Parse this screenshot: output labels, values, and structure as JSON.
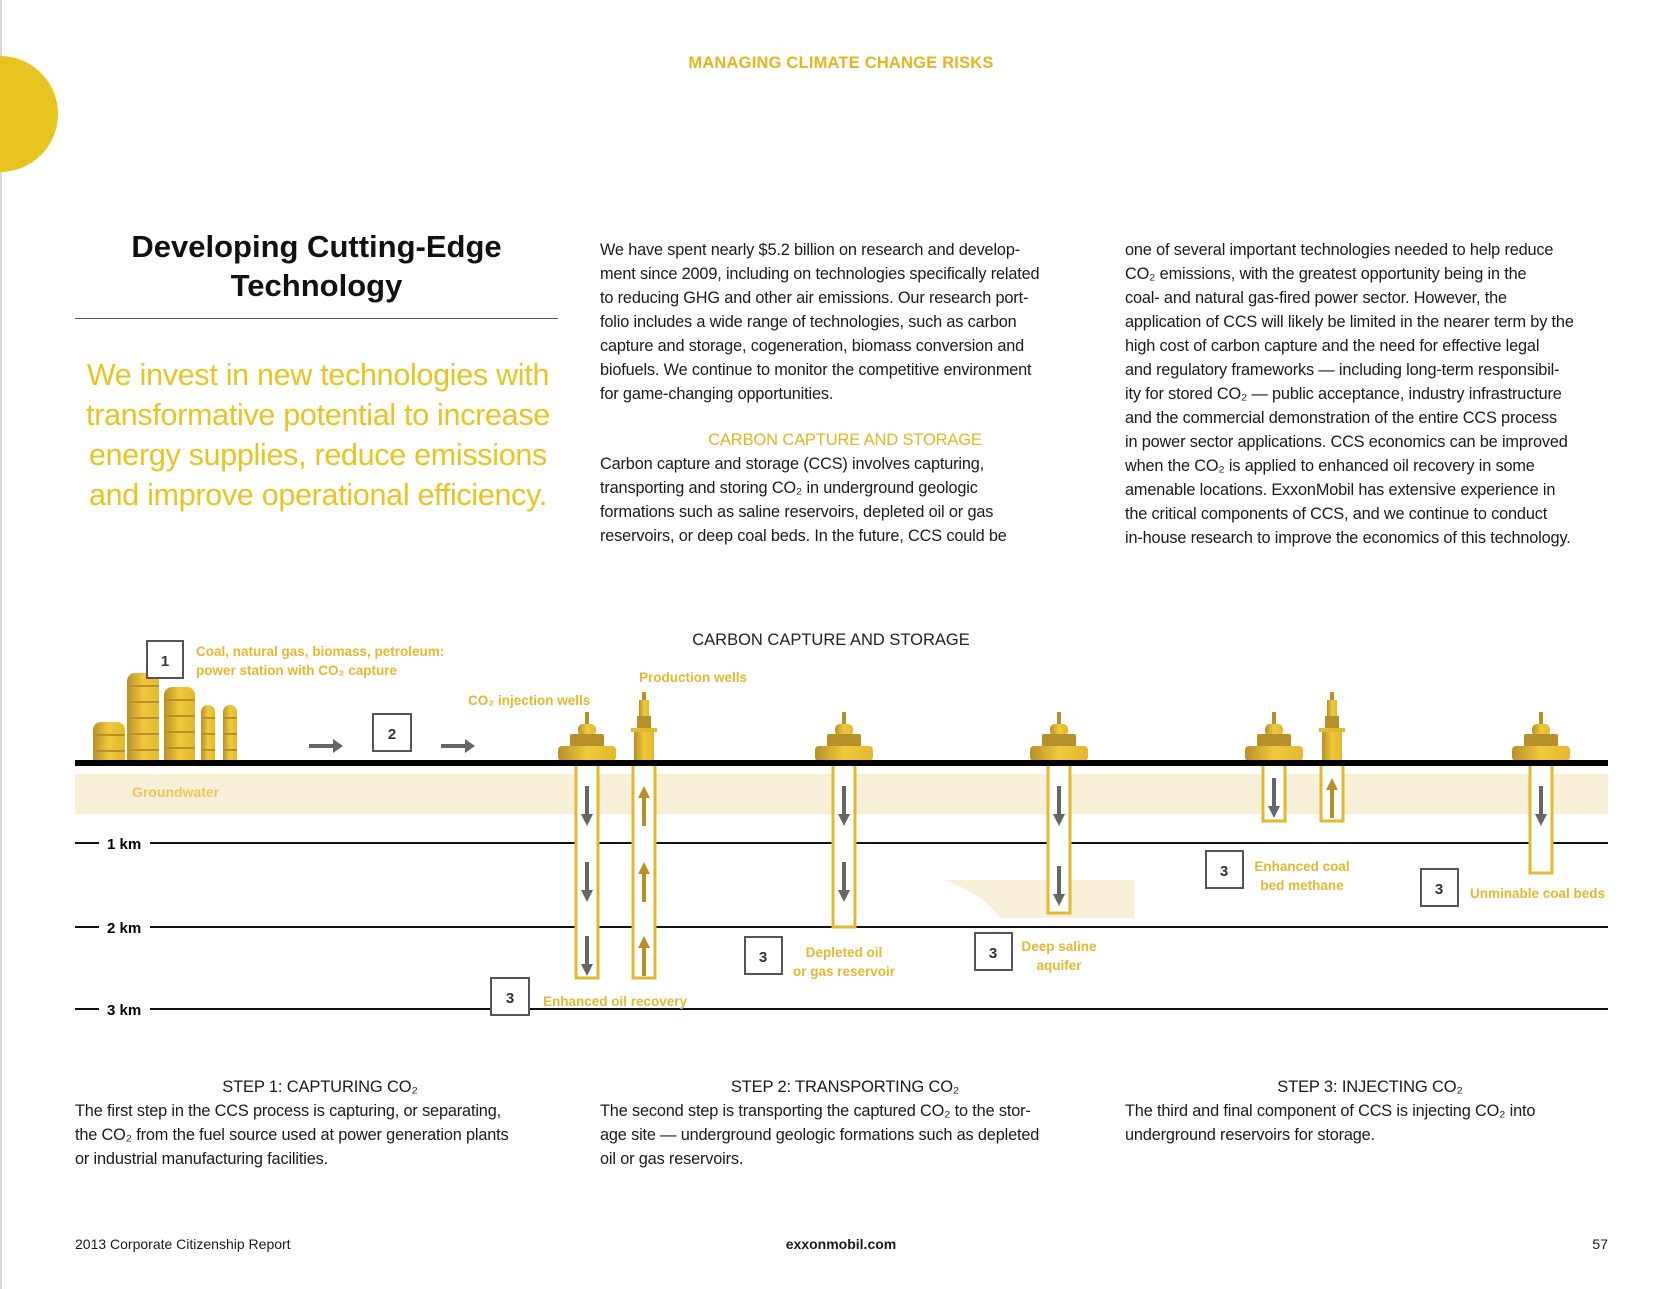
{
  "header": {
    "section": "MANAGING CLIMATE CHANGE RISKS"
  },
  "title": {
    "line1": "Developing Cutting-Edge",
    "line2": "Technology"
  },
  "pull_quote": [
    "We invest in new technologies with",
    "transformative potential to increase",
    "energy supplies, reduce emissions",
    "and improve operational efficiency."
  ],
  "column2": {
    "intro": [
      "We have spent nearly $5.2 billion on research and develop-",
      "ment since 2009, including on technologies specifically related",
      "to reducing GHG and other air emissions. Our research port-",
      "folio includes a wide range of technologies, such as carbon",
      "capture and storage, cogeneration, biomass conversion and",
      "biofuels. We continue to monitor the competitive environment",
      "for game-changing opportunities."
    ],
    "subheading": "CARBON CAPTURE AND STORAGE",
    "ccs": [
      "Carbon capture and storage (CCS) involves capturing,",
      "transporting and storing CO₂ in underground geologic",
      "formations such as saline reservoirs, depleted oil or gas",
      "reservoirs, or deep coal beds. In the future, CCS could be"
    ]
  },
  "column3": [
    "one of several important technologies needed to help reduce",
    "CO₂ emissions, with the greatest opportunity being in the",
    "coal- and natural gas-fired power sector. However, the",
    "application of CCS will likely be limited in the nearer term by the",
    "high cost of carbon capture and the need for effective legal",
    "and regulatory frameworks — including long-term responsibil-",
    "ity for stored CO₂ — public acceptance, industry infrastructure",
    "and the commercial demonstration of the entire CCS process",
    "in power sector applications. CCS economics can be improved",
    "when the CO₂ is applied to enhanced oil recovery in some",
    "amenable locations. ExxonMobil has extensive experience in",
    "the critical components of CCS, and we continue to conduct",
    "in-house research to improve the economics of this technology."
  ],
  "diagram": {
    "title": "CARBON CAPTURE AND STORAGE",
    "source_line1": "Coal, natural gas, biomass, petroleum:",
    "source_line2": "power station with CO₂ capture",
    "injection_wells": "CO₂ injection wells",
    "production_wells": "Production wells",
    "groundwater": "Groundwater",
    "depths": [
      "1 km",
      "2 km",
      "3 km"
    ],
    "step_boxes": {
      "capture": "1",
      "transport": "2",
      "inject": "3"
    },
    "sites": {
      "eor": "Enhanced oil recovery",
      "depleted_1": "Depleted oil",
      "depleted_2": "or gas reservoir",
      "saline_1": "Deep saline",
      "saline_2": "aquifer",
      "ecbm_1": "Enhanced coal",
      "ecbm_2": "bed methane",
      "coal": "Unminable coal beds"
    },
    "colors": {
      "gold": "#e3b730",
      "gold_dark": "#b8902a",
      "band": "#f8efd8",
      "arrow_down": "#666666"
    }
  },
  "steps": [
    {
      "heading": "STEP 1: CAPTURING CO₂",
      "lines": [
        "The first step in the CCS process is capturing, or separating,",
        "the CO₂ from the fuel source used at power generation plants",
        "or industrial manufacturing facilities."
      ]
    },
    {
      "heading": "STEP 2: TRANSPORTING CO₂",
      "lines": [
        "The second step is transporting the captured CO₂ to the stor-",
        "age site — underground geologic formations such as depleted",
        "oil or gas reservoirs."
      ]
    },
    {
      "heading": "STEP 3: INJECTING CO₂",
      "lines": [
        "The third and final component of CCS is injecting CO₂ into",
        "underground reservoirs for storage."
      ]
    }
  ],
  "footer": {
    "report": "2013 Corporate Citizenship Report",
    "site": "exxonmobil.com",
    "page": "57"
  }
}
